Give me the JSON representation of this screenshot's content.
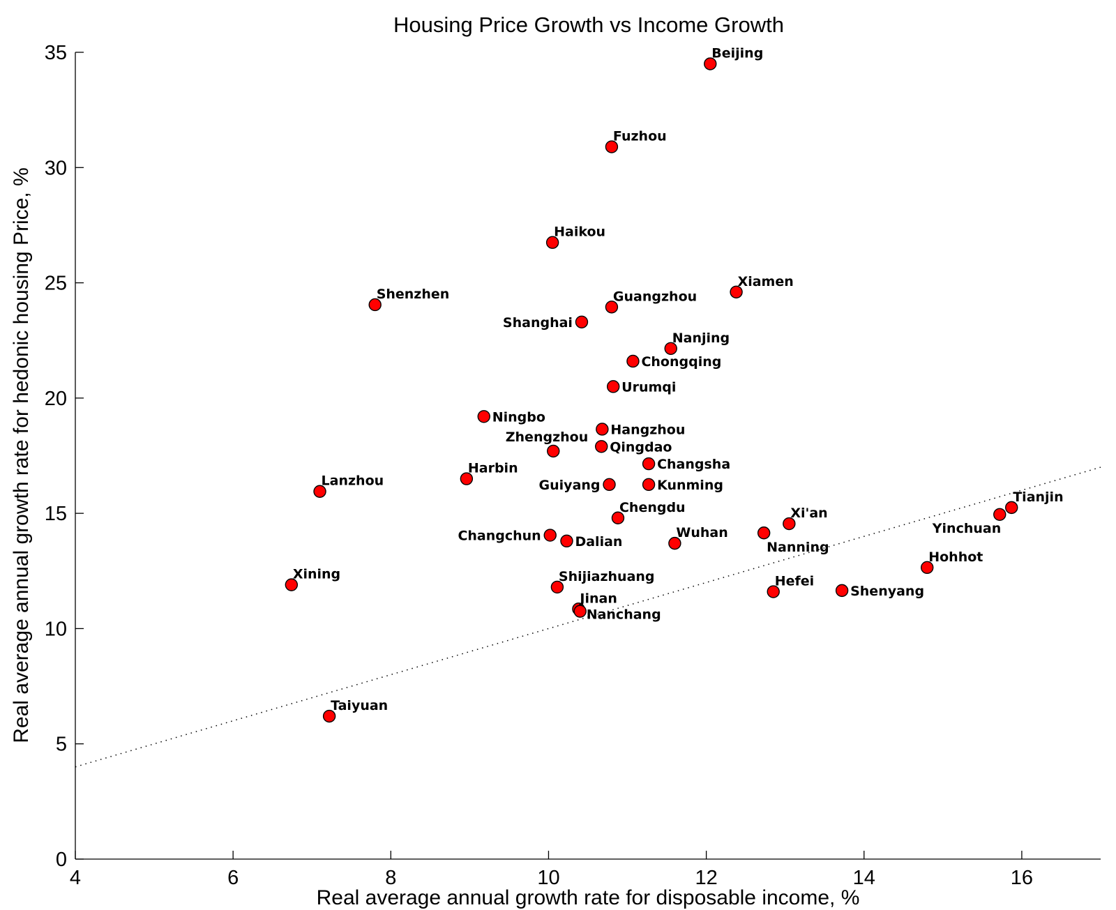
{
  "chart_data": {
    "type": "scatter",
    "title": "Housing Price Growth vs Income Growth",
    "xlabel": "Real average annual growth rate for disposable income, %",
    "ylabel": "Real average annual growth rate for hedonic housing Price, %",
    "xlim": [
      4,
      17
    ],
    "ylim": [
      0,
      35
    ],
    "x_ticks": [
      4,
      6,
      8,
      10,
      12,
      14,
      16
    ],
    "y_ticks": [
      0,
      5,
      10,
      15,
      20,
      25,
      30,
      35
    ],
    "grid": false,
    "trend_line": {
      "style": "dotted",
      "x": [
        4,
        17
      ],
      "y": [
        4,
        17
      ]
    },
    "points": [
      {
        "name": "Beijing",
        "x": 12.05,
        "y": 34.5
      },
      {
        "name": "Fuzhou",
        "x": 10.8,
        "y": 30.9
      },
      {
        "name": "Haikou",
        "x": 10.05,
        "y": 26.75
      },
      {
        "name": "Xiamen",
        "x": 12.38,
        "y": 24.6
      },
      {
        "name": "Shenzhen",
        "x": 7.8,
        "y": 24.05
      },
      {
        "name": "Guangzhou",
        "x": 10.8,
        "y": 23.95
      },
      {
        "name": "Shanghai",
        "x": 10.42,
        "y": 23.3
      },
      {
        "name": "Nanjing",
        "x": 11.55,
        "y": 22.15
      },
      {
        "name": "Chongqing",
        "x": 11.07,
        "y": 21.6
      },
      {
        "name": "Urumqi",
        "x": 10.82,
        "y": 20.5
      },
      {
        "name": "Ningbo",
        "x": 9.18,
        "y": 19.2
      },
      {
        "name": "Hangzhou",
        "x": 10.68,
        "y": 18.65
      },
      {
        "name": "Qingdao",
        "x": 10.67,
        "y": 17.9
      },
      {
        "name": "Zhengzhou",
        "x": 10.06,
        "y": 17.7
      },
      {
        "name": "Changsha",
        "x": 11.27,
        "y": 17.15
      },
      {
        "name": "Harbin",
        "x": 8.96,
        "y": 16.5
      },
      {
        "name": "Guiyang",
        "x": 10.77,
        "y": 16.25
      },
      {
        "name": "Kunming",
        "x": 11.27,
        "y": 16.25
      },
      {
        "name": "Lanzhou",
        "x": 7.1,
        "y": 15.95
      },
      {
        "name": "Tianjin",
        "x": 15.87,
        "y": 15.25
      },
      {
        "name": "Yinchuan",
        "x": 15.72,
        "y": 14.95
      },
      {
        "name": "Chengdu",
        "x": 10.88,
        "y": 14.8
      },
      {
        "name": "Xi'an",
        "x": 13.05,
        "y": 14.55
      },
      {
        "name": "Nanning",
        "x": 12.73,
        "y": 14.15
      },
      {
        "name": "Changchun",
        "x": 10.02,
        "y": 14.05
      },
      {
        "name": "Dalian",
        "x": 10.23,
        "y": 13.8
      },
      {
        "name": "Wuhan",
        "x": 11.6,
        "y": 13.7
      },
      {
        "name": "Hohhot",
        "x": 14.8,
        "y": 12.65
      },
      {
        "name": "Xining",
        "x": 6.74,
        "y": 11.9
      },
      {
        "name": "Shijiazhuang",
        "x": 10.11,
        "y": 11.8
      },
      {
        "name": "Shenyang",
        "x": 13.72,
        "y": 11.65
      },
      {
        "name": "Hefei",
        "x": 12.85,
        "y": 11.6
      },
      {
        "name": "Jinan",
        "x": 10.38,
        "y": 10.85
      },
      {
        "name": "Nanchang",
        "x": 10.4,
        "y": 10.75
      },
      {
        "name": "Taiyuan",
        "x": 7.22,
        "y": 6.2
      }
    ],
    "colors": {
      "marker_fill": "#ff0000",
      "marker_edge": "#000000"
    }
  }
}
